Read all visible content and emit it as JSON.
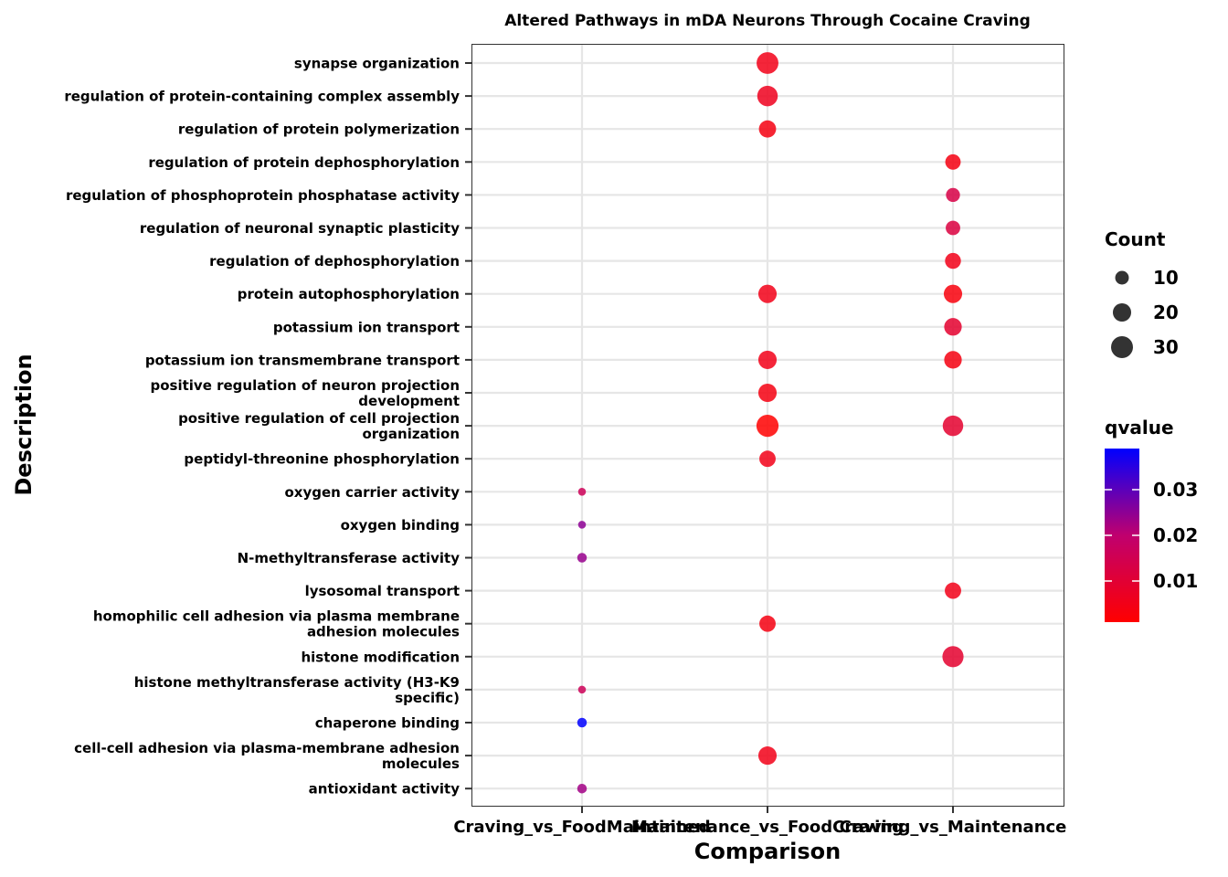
{
  "chart_data": {
    "type": "scatter",
    "title": "Altered Pathways in mDA Neurons Through Cocaine Craving",
    "xlabel": "Comparison",
    "ylabel": "Description",
    "categories_x": [
      "Craving_vs_FoodMaintained",
      "Maintenance_vs_FoodCraving",
      "Craving_vs_Maintenance"
    ],
    "categories_y": [
      "synapse organization",
      "regulation of protein-containing complex assembly",
      "regulation of protein polymerization",
      "regulation of protein dephosphorylation",
      "regulation of phosphoprotein phosphatase activity",
      "regulation of neuronal synaptic plasticity",
      "regulation of dephosphorylation",
      "protein autophosphorylation",
      "potassium ion transport",
      "potassium ion transmembrane transport",
      "positive regulation of neuron projection development",
      "positive regulation of cell projection organization",
      "peptidyl-threonine phosphorylation",
      "oxygen carrier activity",
      "oxygen binding",
      "N-methyltransferase activity",
      "lysosomal transport",
      "homophilic cell adhesion via plasma membrane adhesion molecules",
      "histone modification",
      "histone methyltransferase activity (H3-K9 specific)",
      "chaperone binding",
      "cell-cell adhesion via plasma-membrane adhesion molecules",
      "antioxidant activity"
    ],
    "y_label_lines": [
      [
        "synapse organization"
      ],
      [
        "regulation of protein-containing complex assembly"
      ],
      [
        "regulation of protein polymerization"
      ],
      [
        "regulation of protein dephosphorylation"
      ],
      [
        "regulation of phosphoprotein phosphatase activity"
      ],
      [
        "regulation of neuronal synaptic plasticity"
      ],
      [
        "regulation of dephosphorylation"
      ],
      [
        "protein autophosphorylation"
      ],
      [
        "potassium ion transport"
      ],
      [
        "potassium ion transmembrane transport"
      ],
      [
        "positive regulation of neuron projection",
        "development"
      ],
      [
        "positive regulation of cell projection",
        "organization"
      ],
      [
        "peptidyl-threonine phosphorylation"
      ],
      [
        "oxygen carrier activity"
      ],
      [
        "oxygen binding"
      ],
      [
        "N-methyltransferase activity"
      ],
      [
        "lysosomal transport"
      ],
      [
        "homophilic cell adhesion via plasma membrane",
        "adhesion molecules"
      ],
      [
        "histone modification"
      ],
      [
        "histone methyltransferase activity (H3-K9",
        "specific)"
      ],
      [
        "chaperone binding"
      ],
      [
        "cell-cell adhesion via plasma-membrane adhesion",
        "molecules"
      ],
      [
        "antioxidant activity"
      ]
    ],
    "points": [
      {
        "x": "Maintenance_vs_FoodCraving",
        "y": "synapse organization",
        "count": 32,
        "qvalue": 0.005
      },
      {
        "x": "Maintenance_vs_FoodCraving",
        "y": "regulation of protein-containing complex assembly",
        "count": 28,
        "qvalue": 0.006
      },
      {
        "x": "Maintenance_vs_FoodCraving",
        "y": "regulation of protein polymerization",
        "count": 19,
        "qvalue": 0.004
      },
      {
        "x": "Craving_vs_Maintenance",
        "y": "regulation of protein dephosphorylation",
        "count": 15,
        "qvalue": 0.004
      },
      {
        "x": "Craving_vs_Maintenance",
        "y": "regulation of phosphoprotein phosphatase activity",
        "count": 12,
        "qvalue": 0.013
      },
      {
        "x": "Craving_vs_Maintenance",
        "y": "regulation of neuronal synaptic plasticity",
        "count": 13,
        "qvalue": 0.012
      },
      {
        "x": "Craving_vs_Maintenance",
        "y": "regulation of dephosphorylation",
        "count": 16,
        "qvalue": 0.005
      },
      {
        "x": "Maintenance_vs_FoodCraving",
        "y": "protein autophosphorylation",
        "count": 22,
        "qvalue": 0.005
      },
      {
        "x": "Craving_vs_Maintenance",
        "y": "protein autophosphorylation",
        "count": 22,
        "qvalue": 0.003
      },
      {
        "x": "Craving_vs_Maintenance",
        "y": "potassium ion transport",
        "count": 20,
        "qvalue": 0.009
      },
      {
        "x": "Maintenance_vs_FoodCraving",
        "y": "potassium ion transmembrane transport",
        "count": 22,
        "qvalue": 0.005
      },
      {
        "x": "Craving_vs_Maintenance",
        "y": "potassium ion transmembrane transport",
        "count": 20,
        "qvalue": 0.004
      },
      {
        "x": "Maintenance_vs_FoodCraving",
        "y": "positive regulation of neuron projection development",
        "count": 22,
        "qvalue": 0.004
      },
      {
        "x": "Maintenance_vs_FoodCraving",
        "y": "positive regulation of cell projection organization",
        "count": 33,
        "qvalue": 0.001
      },
      {
        "x": "Craving_vs_Maintenance",
        "y": "positive regulation of cell projection organization",
        "count": 28,
        "qvalue": 0.009
      },
      {
        "x": "Maintenance_vs_FoodCraving",
        "y": "peptidyl-threonine phosphorylation",
        "count": 17,
        "qvalue": 0.005
      },
      {
        "x": "Craving_vs_FoodMaintained",
        "y": "oxygen carrier activity",
        "count": 3,
        "qvalue": 0.016
      },
      {
        "x": "Craving_vs_FoodMaintained",
        "y": "oxygen binding",
        "count": 3,
        "qvalue": 0.025
      },
      {
        "x": "Craving_vs_FoodMaintained",
        "y": "N-methyltransferase activity",
        "count": 5,
        "qvalue": 0.024
      },
      {
        "x": "Craving_vs_Maintenance",
        "y": "lysosomal transport",
        "count": 17,
        "qvalue": 0.005
      },
      {
        "x": "Maintenance_vs_FoodCraving",
        "y": "homophilic cell adhesion via plasma membrane adhesion molecules",
        "count": 17,
        "qvalue": 0.004
      },
      {
        "x": "Craving_vs_Maintenance",
        "y": "histone modification",
        "count": 30,
        "qvalue": 0.009
      },
      {
        "x": "Craving_vs_FoodMaintained",
        "y": "histone methyltransferase activity (H3-K9 specific)",
        "count": 3,
        "qvalue": 0.016
      },
      {
        "x": "Craving_vs_FoodMaintained",
        "y": "chaperone binding",
        "count": 5,
        "qvalue": 0.039
      },
      {
        "x": "Maintenance_vs_FoodCraving",
        "y": "cell-cell adhesion via plasma-membrane adhesion molecules",
        "count": 22,
        "qvalue": 0.005
      },
      {
        "x": "Craving_vs_FoodMaintained",
        "y": "antioxidant activity",
        "count": 5,
        "qvalue": 0.023
      }
    ],
    "legend_size": {
      "title": "Count",
      "values": [
        10,
        20,
        30
      ]
    },
    "legend_color": {
      "title": "qvalue",
      "ticks": [
        0.03,
        0.02,
        0.01
      ],
      "range": [
        0.001,
        0.039
      ],
      "low_color": "#ff0000",
      "high_color": "#0000ff"
    },
    "grid": true,
    "legend_position": "right"
  }
}
